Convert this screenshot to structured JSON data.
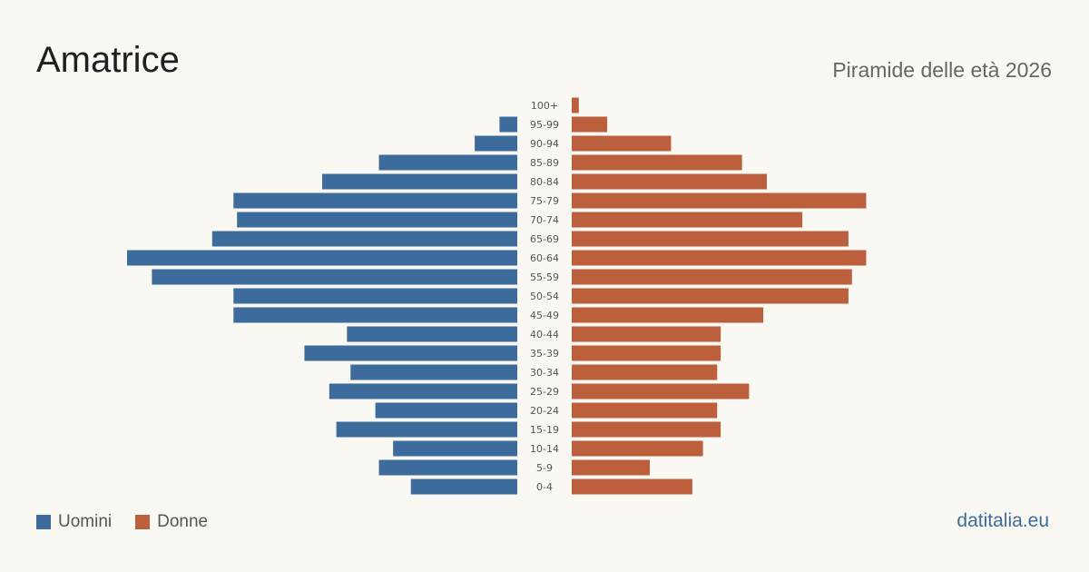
{
  "header": {
    "title": "Amatrice",
    "subtitle": "Piramide delle età 2026"
  },
  "footer": {
    "source": "datitalia.eu"
  },
  "colors": {
    "men": "#3d6b9b",
    "women": "#bb5f3d"
  },
  "chart_data": {
    "type": "bar",
    "orientation": "horizontal-pyramid",
    "categories": [
      "0-4",
      "5-9",
      "10-14",
      "15-19",
      "20-24",
      "25-29",
      "30-34",
      "35-39",
      "40-44",
      "45-49",
      "50-54",
      "55-59",
      "60-64",
      "65-69",
      "70-74",
      "75-79",
      "80-84",
      "85-89",
      "90-94",
      "95-99",
      "100+"
    ],
    "series": [
      {
        "name": "Uomini",
        "values": [
          30,
          39,
          35,
          51,
          40,
          53,
          47,
          60,
          48,
          80,
          80,
          103,
          110,
          86,
          79,
          80,
          55,
          39,
          12,
          5,
          0
        ]
      },
      {
        "name": "Donne",
        "values": [
          34,
          22,
          37,
          42,
          41,
          50,
          41,
          42,
          42,
          54,
          78,
          79,
          83,
          78,
          65,
          83,
          55,
          48,
          28,
          10,
          2
        ]
      }
    ],
    "xlim": [
      0,
      110
    ],
    "grid": false,
    "legend_position": "bottom-left"
  }
}
